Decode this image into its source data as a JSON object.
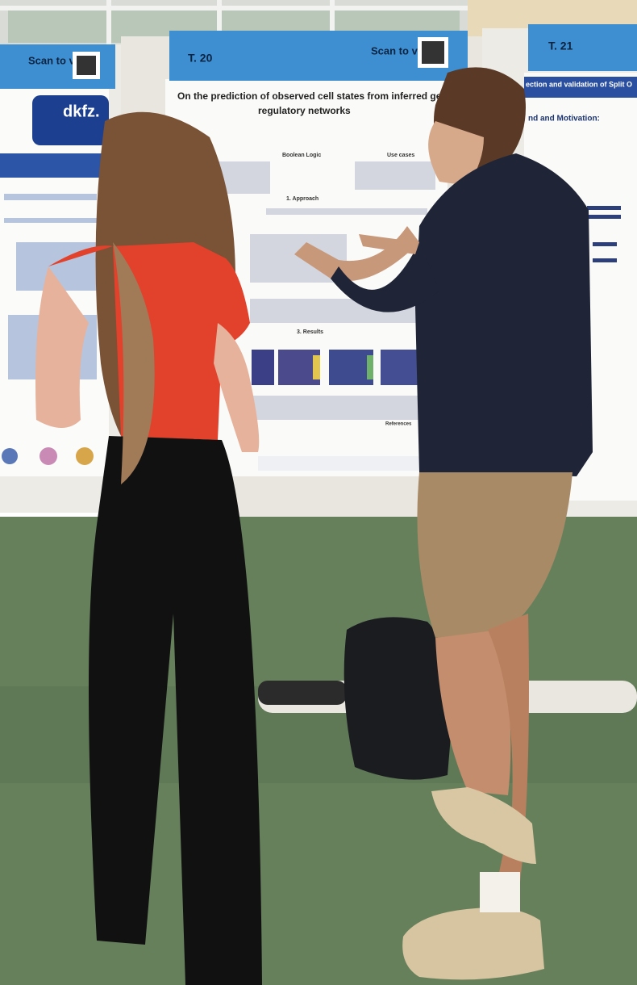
{
  "signs": [
    {
      "label": "Scan to vote:"
    },
    {
      "label": "T. 20"
    },
    {
      "label": "Scan to vote:"
    },
    {
      "label": "T. 21"
    }
  ],
  "posters": {
    "left": {
      "logo": "dkfz."
    },
    "center": {
      "title_line1": "On the prediction of observed cell states from inferred ge",
      "title_line2": "regulatory networks",
      "headings": [
        "Boolean Logic",
        "Use cases",
        "1. Approach",
        "3. Results",
        "References"
      ]
    },
    "right": {
      "title": "ection and validation of Split O",
      "heading": "nd and Motivation:"
    }
  }
}
